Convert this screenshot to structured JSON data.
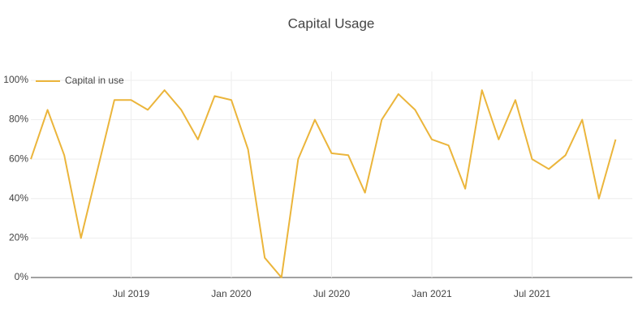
{
  "chart_data": {
    "type": "line",
    "title": "Capital Usage",
    "x": [
      "2019-01",
      "2019-02",
      "2019-03",
      "2019-04",
      "2019-05",
      "2019-06",
      "2019-07",
      "2019-08",
      "2019-09",
      "2019-10",
      "2019-11",
      "2019-12",
      "2020-01",
      "2020-02",
      "2020-03",
      "2020-04",
      "2020-05",
      "2020-06",
      "2020-07",
      "2020-08",
      "2020-09",
      "2020-10",
      "2020-11",
      "2020-12",
      "2021-01",
      "2021-02",
      "2021-03",
      "2021-04",
      "2021-05",
      "2021-06",
      "2021-07",
      "2021-08",
      "2021-09",
      "2021-10",
      "2021-11",
      "2021-12"
    ],
    "series": [
      {
        "name": "Capital in use",
        "color": "#ebb53b",
        "values": [
          60,
          85,
          62,
          20,
          55,
          90,
          90,
          85,
          95,
          85,
          70,
          92,
          90,
          65,
          10,
          0,
          60,
          80,
          63,
          62,
          43,
          80,
          93,
          85,
          70,
          67,
          45,
          95,
          70,
          90,
          60,
          55,
          62,
          80,
          40,
          70
        ]
      }
    ],
    "xlim": [
      "2019-01",
      "2022-01"
    ],
    "xticks": [
      {
        "value": "2019-07",
        "label": "Jul 2019"
      },
      {
        "value": "2020-01",
        "label": "Jan 2020"
      },
      {
        "value": "2020-07",
        "label": "Jul 2020"
      },
      {
        "value": "2021-01",
        "label": "Jan 2021"
      },
      {
        "value": "2021-07",
        "label": "Jul 2021"
      }
    ],
    "ylim": [
      0,
      104.5
    ],
    "yticks": [
      {
        "value": 0,
        "label": "0%"
      },
      {
        "value": 20,
        "label": "20%"
      },
      {
        "value": 40,
        "label": "40%"
      },
      {
        "value": 60,
        "label": "60%"
      },
      {
        "value": 80,
        "label": "80%"
      },
      {
        "value": 100,
        "label": "100%"
      }
    ],
    "grid": true,
    "legend": "top-left"
  }
}
